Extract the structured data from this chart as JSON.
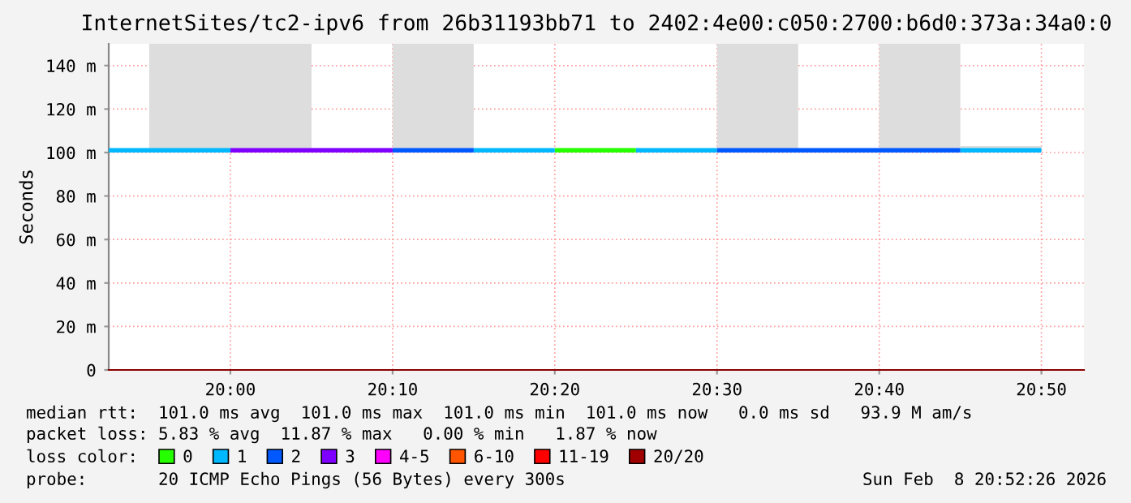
{
  "chart_data": {
    "type": "line",
    "title": "InternetSites/tc2-ipv6 from 26b31193bb71 to 2402:4e00:c050:2700:b6d0:373a:34a0:0",
    "ylabel": "Seconds",
    "legend_title": "loss color:",
    "series": [
      {
        "name": "0",
        "color": "#26ff00",
        "x": [
          20.3333,
          20.4167
        ],
        "values": [
          101,
          101
        ]
      },
      {
        "name": "1",
        "color": "#00b8ff",
        "x": [
          19.875,
          20.0,
          20.1,
          20.25,
          20.3333,
          20.375,
          20.4167,
          20.5,
          20.6,
          20.75,
          20.8333
        ],
        "values": [
          101,
          101,
          null,
          101,
          101,
          null,
          101,
          101,
          null,
          101,
          101
        ]
      },
      {
        "name": "2",
        "color": "#0059ff",
        "x": [
          20.1667,
          20.25,
          20.4,
          20.5,
          20.75
        ],
        "values": [
          101,
          101,
          null,
          101,
          101
        ]
      },
      {
        "name": "3",
        "color": "#7e00ff",
        "x": [
          20.0,
          20.1667
        ],
        "values": [
          101,
          101
        ]
      },
      {
        "name": "4-5",
        "color": "#ff00ff"
      },
      {
        "name": "6-10",
        "color": "#ff5500"
      },
      {
        "name": "11-19",
        "color": "#ff0000"
      },
      {
        "name": "20/20",
        "color": "#a10000"
      },
      {
        "type": "bar",
        "color": "#dddddd",
        "x": [
          19.9583,
          20.0417,
          20.2083,
          20.5417,
          20.7083,
          20.7917
        ],
        "base": [
          101,
          101,
          101,
          101,
          101,
          101
        ],
        "values": [
          49,
          49,
          49,
          49,
          49,
          2
        ]
      }
    ],
    "xlim": [
      19.875,
      20.877
    ],
    "xticks": [
      {
        "value": 20.0,
        "label": "20:00"
      },
      {
        "value": 20.1667,
        "label": "20:10"
      },
      {
        "value": 20.3333,
        "label": "20:20"
      },
      {
        "value": 20.5,
        "label": "20:30"
      },
      {
        "value": 20.6667,
        "label": "20:40"
      },
      {
        "value": 20.8333,
        "label": "20:50"
      }
    ],
    "ylim": [
      0,
      150
    ],
    "yticks": [
      0,
      {
        "value": 20,
        "label": "20 m"
      },
      {
        "value": 40,
        "label": "40 m"
      },
      {
        "value": 60,
        "label": "60 m"
      },
      {
        "value": 80,
        "label": "80 m"
      },
      {
        "value": 100,
        "label": "100 m"
      },
      {
        "value": 120,
        "label": "120 m"
      },
      {
        "value": 140,
        "label": "140 m"
      }
    ],
    "grid": true,
    "legend": "bottom",
    "annotations": [
      "median rtt:  101.0 ms avg  101.0 ms max  101.0 ms min  101.0 ms now   0.0 ms sd   93.9 M am/s",
      "packet loss: 5.83 % avg  11.87 % max   0.00 % min   1.87 % now",
      "probe:       20 ICMP Echo Pings (56 Bytes) every 300s",
      "Sun Feb  8 20:52:26 2026"
    ]
  }
}
